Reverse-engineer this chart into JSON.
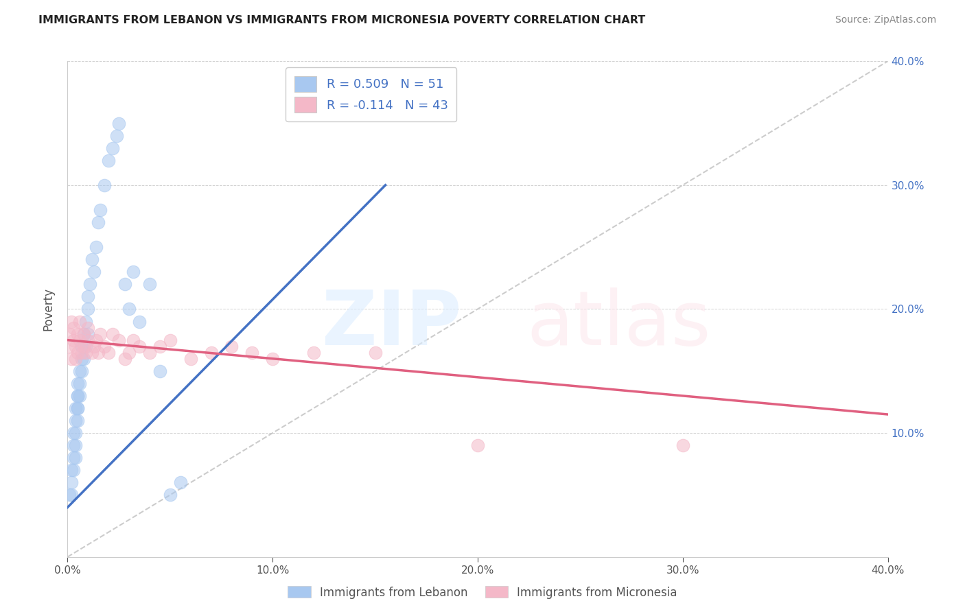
{
  "title": "IMMIGRANTS FROM LEBANON VS IMMIGRANTS FROM MICRONESIA POVERTY CORRELATION CHART",
  "source": "Source: ZipAtlas.com",
  "ylabel": "Poverty",
  "xlim": [
    0.0,
    0.4
  ],
  "ylim": [
    0.0,
    0.4
  ],
  "legend1_label": "R = 0.509   N = 51",
  "legend2_label": "R = -0.114   N = 43",
  "color_blue": "#a8c8f0",
  "color_pink": "#f4b8c8",
  "color_blue_line": "#4472c4",
  "color_pink_line": "#e06080",
  "color_gray_dashed": "#c0c0c0",
  "legend_text_color": "#4472c4",
  "right_tick_color": "#4472c4",
  "lebanon_x": [
    0.001,
    0.002,
    0.002,
    0.002,
    0.003,
    0.003,
    0.003,
    0.003,
    0.004,
    0.004,
    0.004,
    0.004,
    0.004,
    0.005,
    0.005,
    0.005,
    0.005,
    0.005,
    0.005,
    0.006,
    0.006,
    0.006,
    0.007,
    0.007,
    0.007,
    0.008,
    0.008,
    0.009,
    0.009,
    0.01,
    0.01,
    0.01,
    0.011,
    0.012,
    0.013,
    0.014,
    0.015,
    0.016,
    0.018,
    0.02,
    0.022,
    0.024,
    0.025,
    0.028,
    0.03,
    0.032,
    0.035,
    0.04,
    0.045,
    0.05,
    0.055
  ],
  "lebanon_y": [
    0.05,
    0.06,
    0.07,
    0.05,
    0.09,
    0.08,
    0.1,
    0.07,
    0.11,
    0.12,
    0.08,
    0.09,
    0.1,
    0.13,
    0.12,
    0.14,
    0.11,
    0.13,
    0.12,
    0.14,
    0.15,
    0.13,
    0.16,
    0.15,
    0.17,
    0.18,
    0.16,
    0.19,
    0.17,
    0.2,
    0.18,
    0.21,
    0.22,
    0.24,
    0.23,
    0.25,
    0.27,
    0.28,
    0.3,
    0.32,
    0.33,
    0.34,
    0.35,
    0.22,
    0.2,
    0.23,
    0.19,
    0.22,
    0.15,
    0.05,
    0.06
  ],
  "micronesia_x": [
    0.001,
    0.001,
    0.002,
    0.002,
    0.003,
    0.003,
    0.004,
    0.004,
    0.005,
    0.005,
    0.006,
    0.006,
    0.007,
    0.008,
    0.008,
    0.009,
    0.01,
    0.01,
    0.012,
    0.013,
    0.014,
    0.015,
    0.016,
    0.018,
    0.02,
    0.022,
    0.025,
    0.028,
    0.03,
    0.032,
    0.035,
    0.04,
    0.045,
    0.05,
    0.06,
    0.07,
    0.08,
    0.09,
    0.1,
    0.12,
    0.15,
    0.2,
    0.3
  ],
  "micronesia_y": [
    0.17,
    0.18,
    0.16,
    0.19,
    0.175,
    0.185,
    0.16,
    0.17,
    0.18,
    0.165,
    0.175,
    0.19,
    0.165,
    0.18,
    0.17,
    0.165,
    0.175,
    0.185,
    0.165,
    0.17,
    0.175,
    0.165,
    0.18,
    0.17,
    0.165,
    0.18,
    0.175,
    0.16,
    0.165,
    0.175,
    0.17,
    0.165,
    0.17,
    0.175,
    0.16,
    0.165,
    0.17,
    0.165,
    0.16,
    0.165,
    0.165,
    0.09,
    0.09
  ],
  "leb_trend_x0": 0.0,
  "leb_trend_y0": 0.04,
  "leb_trend_x1": 0.155,
  "leb_trend_y1": 0.3,
  "mic_trend_x0": 0.0,
  "mic_trend_y0": 0.175,
  "mic_trend_x1": 0.4,
  "mic_trend_y1": 0.115
}
